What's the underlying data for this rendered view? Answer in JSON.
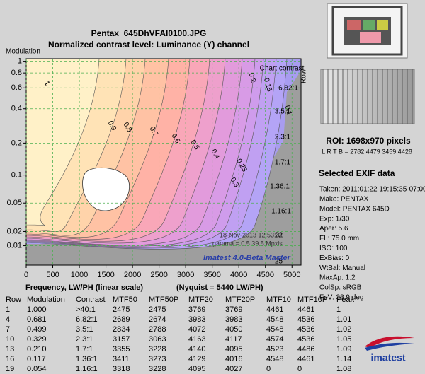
{
  "chart_data": {
    "type": "contour",
    "title": "Pentax_645DhVFAI0100.JPG",
    "subtitle": "Normalized contrast level:  Luminance (Y) channel",
    "y_label": "Modulation",
    "x_label": "Frequency, LW/PH (linear scale)",
    "x_note": "(Nyquist = 5440 LW/PH)",
    "xlim": [
      0,
      5170
    ],
    "xticks": [
      0,
      500,
      1000,
      1500,
      2000,
      2500,
      3000,
      3500,
      4000,
      4500,
      5000
    ],
    "ylim": [
      0,
      1.05
    ],
    "yticks": [
      1,
      0.8,
      0.6,
      0.4,
      0.2,
      0.1,
      0.05,
      0.02,
      0.01
    ],
    "grid": true,
    "grid_color": "#4caf50",
    "contours": [
      {
        "level": 0.1,
        "color": "#b4a4f6"
      },
      {
        "level": 0.15,
        "color": "#c0a0f2"
      },
      {
        "level": 0.2,
        "color": "#cf9cec"
      },
      {
        "level": 0.25,
        "color": "#d89be6"
      },
      {
        "level": 0.3,
        "color": "#e29bdc"
      },
      {
        "level": 0.4,
        "color": "#eea0cc"
      },
      {
        "level": 0.5,
        "color": "#f9a7b8"
      },
      {
        "level": 0.6,
        "color": "#ffb2a6"
      },
      {
        "level": 0.7,
        "color": "#ffc2a4"
      },
      {
        "level": 0.8,
        "color": "#ffd3aa"
      },
      {
        "level": 0.9,
        "color": "#ffe3b6"
      },
      {
        "level": 1,
        "color": "#fff1c8"
      }
    ],
    "chart_contrast_label": "Chart contrast",
    "row_label": "Row",
    "row_ticks": [
      "22",
      "25"
    ],
    "annotations": [
      "18-Nov-2013 12:53:31",
      "gamma = 0.5   39.5 Mpxls",
      "Imatest 4.0-Beta Master"
    ]
  },
  "side_panel": {
    "roi": "ROI:  1698x970 pixels",
    "lrtb": "L R T B = 2782 4479  3459 4428",
    "exif_title": "Selected EXIF data",
    "exif": [
      "Taken: 2011:01:22 19:15:35-07:00",
      "Make:  PENTAX",
      "Model: PENTAX 645D",
      "Exp:  1/30",
      "Aper:  5.6",
      "FL:  75.0 mm",
      "ISO:  100",
      "ExBias: 0",
      "WtBal: Manual",
      "MaxAp: 1.2",
      "ColSp: sRGB",
      "FoV:  33.9 deg"
    ],
    "logo": "imatest"
  },
  "table": {
    "header": [
      "Row",
      "Modulation",
      "Contrast",
      "MTF50",
      "MTF50P",
      "MTF20",
      "MTF20P",
      "MTF10",
      "MTF10P",
      "Peak"
    ],
    "rows": [
      [
        "1",
        "1.000",
        ">40:1",
        "2475",
        "2475",
        "3769",
        "3769",
        "4461",
        "4461",
        "1"
      ],
      [
        "4",
        "0.681",
        "6.82:1",
        "2689",
        "2674",
        "3983",
        "3983",
        "4548",
        "4536",
        "1.01"
      ],
      [
        "7",
        "0.499",
        "3.5:1",
        "2834",
        "2788",
        "4072",
        "4050",
        "4548",
        "4536",
        "1.02"
      ],
      [
        "10",
        "0.329",
        "2.3:1",
        "3157",
        "3063",
        "4163",
        "4117",
        "4574",
        "4536",
        "1.05"
      ],
      [
        "13",
        "0.210",
        "1.7:1",
        "3355",
        "3228",
        "4140",
        "4095",
        "4523",
        "4486",
        "1.09"
      ],
      [
        "16",
        "0.117",
        "1.36:1",
        "3411",
        "3273",
        "4129",
        "4016",
        "4548",
        "4461",
        "1.14"
      ],
      [
        "19",
        "0.054",
        "1.16:1",
        "3318",
        "3228",
        "4095",
        "4027",
        "0",
        "0",
        "1.08"
      ]
    ]
  }
}
